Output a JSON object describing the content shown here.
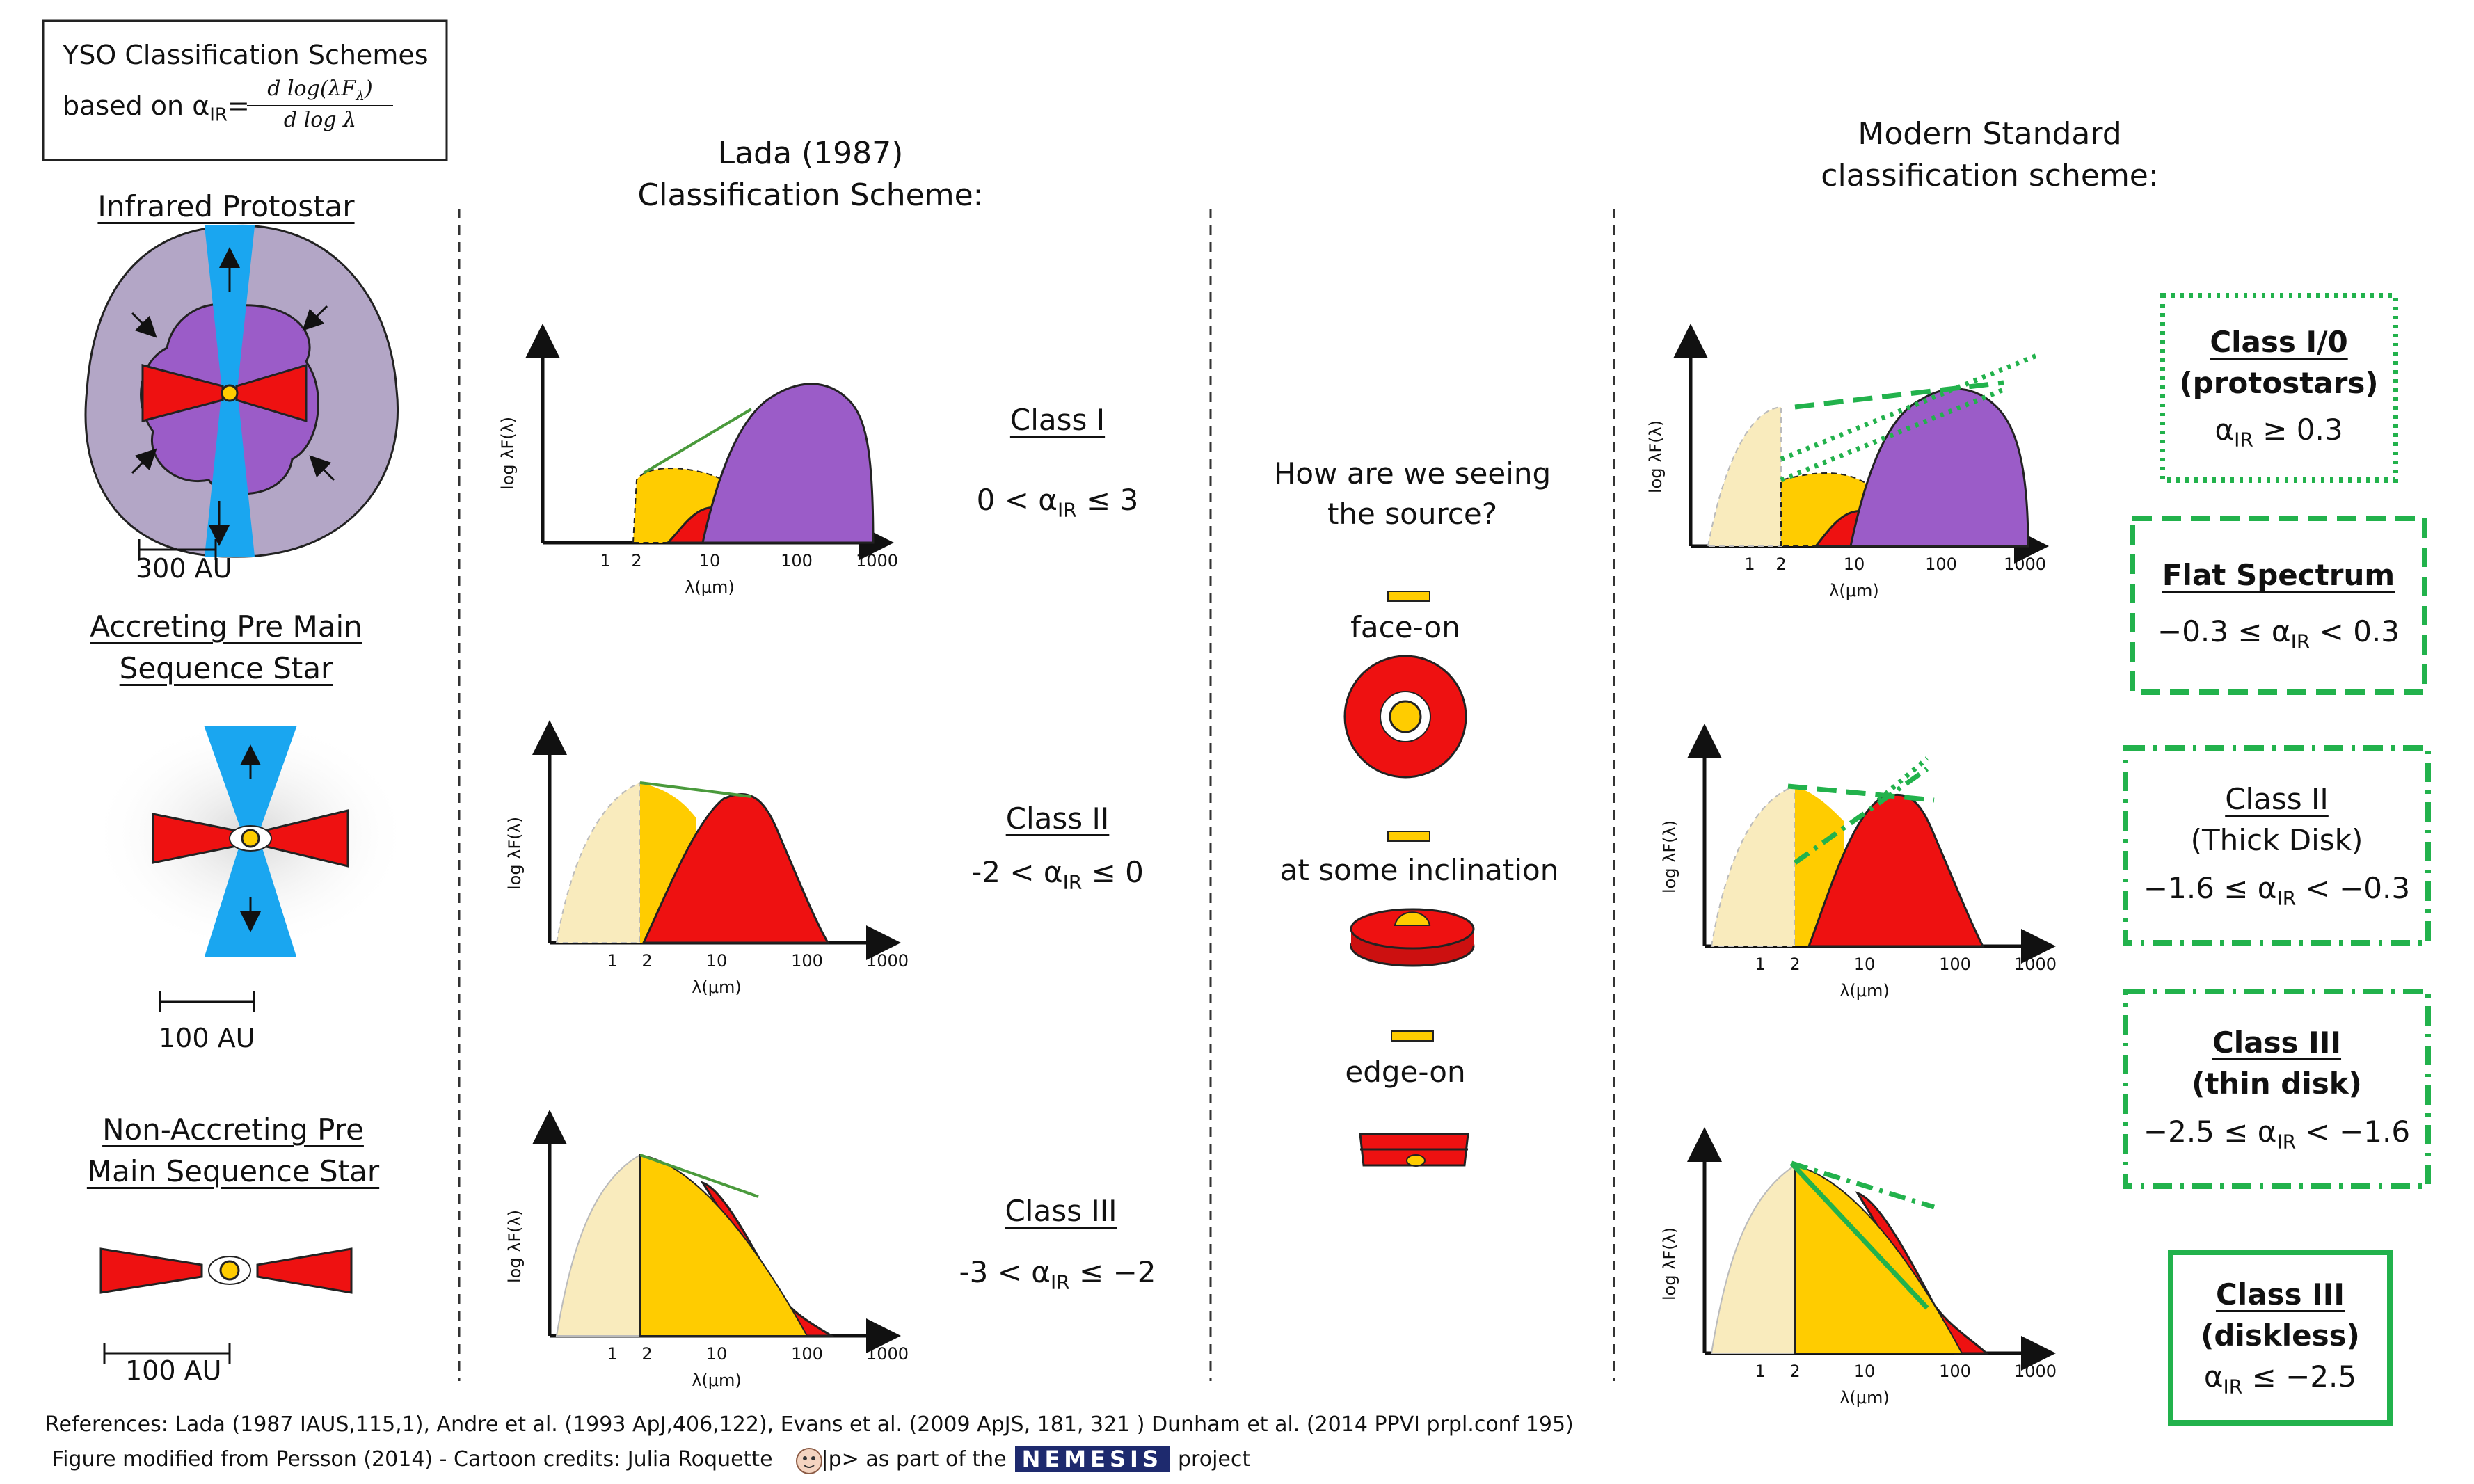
{
  "title": {
    "line1": "YSO Classification Schemes",
    "line2": "based on α",
    "sub": "IR",
    "eq": "=",
    "num": "d log(λF",
    "num_sub": "λ",
    "num_end": ")",
    "den": "d log λ"
  },
  "left": {
    "protostar": "Infrared Protostar",
    "protostar_scale": "300 AU",
    "accreting_1": "Accreting Pre Main",
    "accreting_2": "Sequence Star",
    "accreting_scale": "100 AU",
    "nonaccreting_1": "Non-Accreting Pre",
    "nonaccreting_2": "Main Sequence Star",
    "nonaccreting_scale": "100 AU"
  },
  "lada": {
    "title_1": "Lada (1987)",
    "title_2": "Classification Scheme:",
    "classes": [
      {
        "name": "Class I",
        "cond_pre": "0 < α",
        "cond_sub": "IR",
        "cond_post": " ≤ 3"
      },
      {
        "name": "Class II",
        "cond_pre": "-2 < α",
        "cond_sub": "IR",
        "cond_post": " ≤ 0"
      },
      {
        "name": "Class III",
        "cond_pre": "-3 < α",
        "cond_sub": "IR",
        "cond_post": " ≤ −2"
      }
    ]
  },
  "view": {
    "question_1": "How are we seeing",
    "question_2": "the source?",
    "face_on": "face-on",
    "inclination": "at some inclination",
    "edge_on": "edge-on"
  },
  "modern": {
    "title_1": "Modern Standard",
    "title_2": "classification scheme:",
    "classes": [
      {
        "name": "Class I/0",
        "desc": "(protostars)",
        "cond_pre": "α",
        "cond_sub": "IR",
        "cond_post": " ≥ 0.3"
      },
      {
        "name": "Flat Spectrum",
        "desc": "",
        "cond_pre": "−0.3 ≤ α",
        "cond_sub": "IR",
        "cond_post": " < 0.3"
      },
      {
        "name": "Class II",
        "desc": "(Thick Disk)",
        "cond_pre": "−1.6 ≤ α",
        "cond_sub": "IR",
        "cond_post": " < −0.3"
      },
      {
        "name": "Class III",
        "desc": "(thin disk)",
        "cond_pre": "−2.5 ≤ α",
        "cond_sub": "IR",
        "cond_post": " < −1.6"
      },
      {
        "name": "Class III",
        "desc": "(diskless)",
        "cond_pre": "α",
        "cond_sub": "IR",
        "cond_post": " ≤ −2.5"
      }
    ]
  },
  "axes": {
    "ylabel": "log λF(λ)",
    "xlabel": "λ(μm)",
    "ticks": [
      "1",
      "2",
      "10",
      "100",
      "1000"
    ]
  },
  "footer": {
    "line1": "References: Lada (1987 IAUS,115,1),  Andre et al. (1993 ApJ,406,122), Evans et al. (2009  ApJS, 181, 321 ) Dunham et al. (2014 PPVI prpl.conf 195)",
    "line2_a": "Figure modified from Persson (2014) - Cartoon credits: Julia Roquette",
    "line2_b": "|p> as part of the",
    "logo": "NEMESIS",
    "line2_c": "project"
  },
  "colors": {
    "envelope": "#b3a6c6",
    "inner_envelope": "#9b5cc8",
    "disk": "#ee1111",
    "jet": "#1aa6f0",
    "star": "#ffcc00",
    "star_light": "#f9ebbd",
    "class_box": "#22b24c",
    "slope": "#4a9a3c"
  }
}
